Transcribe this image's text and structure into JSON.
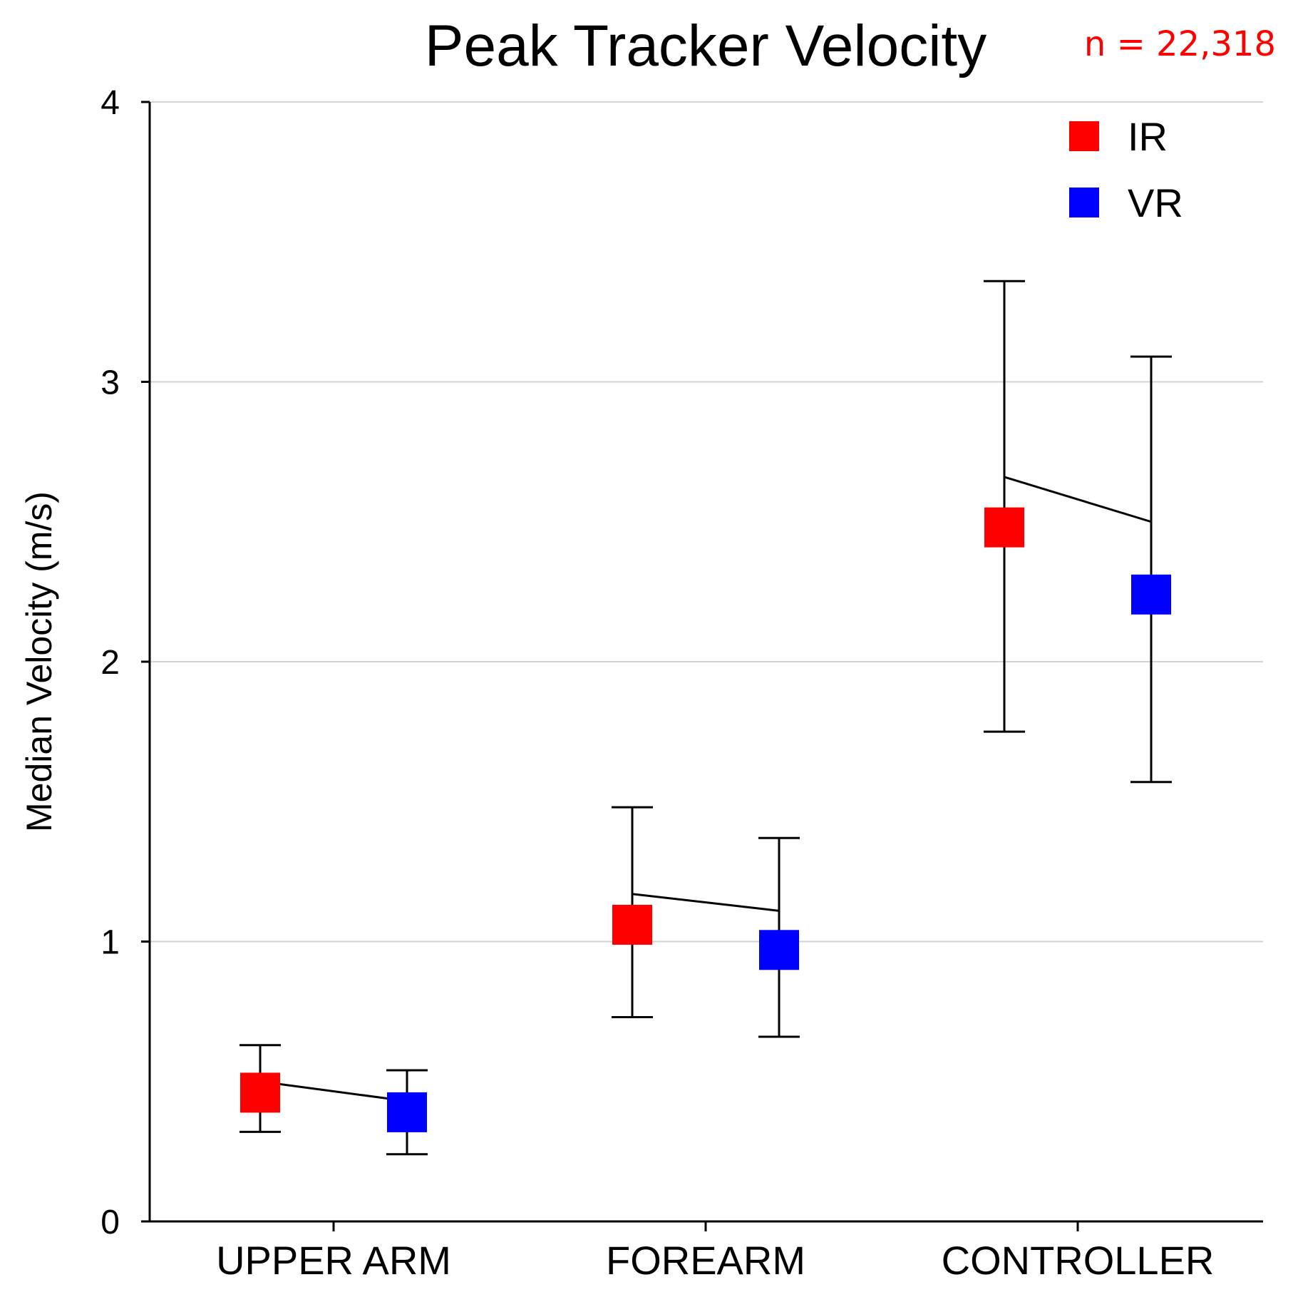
{
  "chart_data": {
    "type": "scatter",
    "title": "Peak Tracker Velocity",
    "annotation": "n = 22,318",
    "annotation_color": "#ff0000",
    "ylabel": "Median Velocity (m/s)",
    "xlabel": "",
    "ylim": [
      0,
      4
    ],
    "yticks": [
      "0",
      "1",
      "2",
      "3",
      "4"
    ],
    "grid": true,
    "legend_position": "top-right",
    "categories": [
      "UPPER ARM",
      "FOR      EARM",
      "CONTROLLER"
    ],
    "category_labels": [
      "UPPER ARM",
      "FOREARM",
      "CONTROLLER"
    ],
    "series": [
      {
        "name": "IR",
        "color": "#ff0000",
        "values": [
          0.46,
          1.06,
          2.48
        ],
        "error_low": [
          0.32,
          0.73,
          1.75
        ],
        "error_high": [
          0.63,
          1.48,
          3.36
        ],
        "connector_value": [
          0.5,
          1.17,
          2.66
        ]
      },
      {
        "name": "VR",
        "color": "#0000ff",
        "values": [
          0.39,
          0.97,
          2.24
        ],
        "error_low": [
          0.24,
          0.66,
          1.57
        ],
        "error_high": [
          0.54,
          1.37,
          3.09
        ],
        "connector_value": [
          0.43,
          1.11,
          2.5
        ]
      }
    ]
  }
}
